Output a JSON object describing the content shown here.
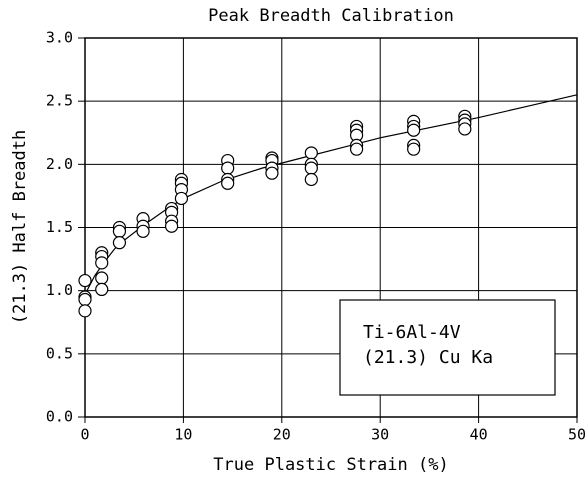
{
  "chart_data": {
    "type": "scatter",
    "title": "Peak Breadth Calibration",
    "xlabel": "True Plastic Strain (%)",
    "ylabel": "(21.3) Half Breadth",
    "annotations": [
      "Ti-6Al-4V",
      "(21.3) Cu Ka"
    ],
    "x": [
      0,
      0,
      0,
      0,
      1.7,
      1.7,
      1.7,
      1.7,
      1.7,
      3.5,
      3.5,
      3.5,
      5.9,
      5.9,
      5.9,
      8.8,
      8.8,
      8.8,
      8.8,
      9.8,
      9.8,
      9.8,
      9.8,
      14.5,
      14.5,
      14.5,
      14.5,
      19,
      19,
      19,
      19,
      23,
      23,
      23,
      23,
      27.6,
      27.6,
      27.6,
      27.6,
      27.6,
      33.4,
      33.4,
      33.4,
      33.4,
      33.4,
      38.6,
      38.6,
      38.6,
      38.6
    ],
    "values": [
      1.08,
      0.95,
      0.93,
      0.84,
      1.3,
      1.27,
      1.22,
      1.1,
      1.01,
      1.5,
      1.47,
      1.38,
      1.57,
      1.51,
      1.47,
      1.65,
      1.62,
      1.55,
      1.51,
      1.88,
      1.85,
      1.8,
      1.73,
      2.03,
      1.97,
      1.88,
      1.85,
      2.05,
      2.03,
      1.97,
      1.93,
      2.09,
      2.0,
      1.97,
      1.88,
      2.3,
      2.27,
      2.23,
      2.15,
      2.12,
      2.34,
      2.3,
      2.27,
      2.15,
      2.12,
      2.38,
      2.35,
      2.32,
      2.28
    ],
    "fit": {
      "x": [
        0,
        1,
        2,
        3,
        4,
        6,
        8,
        10,
        14,
        18,
        22,
        26,
        30,
        35,
        40,
        45,
        50
      ],
      "values": [
        0.97,
        1.12,
        1.23,
        1.33,
        1.4,
        1.52,
        1.63,
        1.73,
        1.87,
        1.97,
        2.05,
        2.13,
        2.21,
        2.29,
        2.37,
        2.46,
        2.55
      ]
    },
    "color": "#000000",
    "xlim": [
      0,
      50
    ],
    "xticks": [
      0,
      10,
      20,
      30,
      40,
      50
    ],
    "ylim": [
      0,
      3
    ],
    "yticks": [
      {
        "value": 0,
        "label": "0.0"
      },
      0.5,
      {
        "value": 1,
        "label": "1.0"
      },
      1.5,
      {
        "value": 2,
        "label": "2.0"
      },
      2.5,
      {
        "value": 3,
        "label": "3.0"
      }
    ],
    "grid": true
  }
}
